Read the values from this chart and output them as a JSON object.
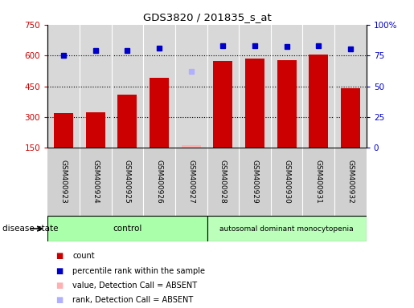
{
  "title": "GDS3820 / 201835_s_at",
  "samples": [
    "GSM400923",
    "GSM400924",
    "GSM400925",
    "GSM400926",
    "GSM400927",
    "GSM400928",
    "GSM400929",
    "GSM400930",
    "GSM400931",
    "GSM400932"
  ],
  "bar_values": [
    320,
    325,
    410,
    490,
    null,
    575,
    585,
    578,
    605,
    440
  ],
  "bar_absent_values": [
    null,
    null,
    null,
    null,
    163,
    null,
    null,
    null,
    null,
    null
  ],
  "percentile_values": [
    75,
    79,
    79,
    81,
    null,
    83,
    83,
    82,
    83,
    80
  ],
  "percentile_absent_values": [
    null,
    null,
    null,
    null,
    62,
    null,
    null,
    null,
    null,
    null
  ],
  "bar_color": "#cc0000",
  "bar_absent_color": "#ffb0b0",
  "percentile_color": "#0000cc",
  "percentile_absent_color": "#b0b0ff",
  "ylim_left": [
    150,
    750
  ],
  "ylim_right": [
    0,
    100
  ],
  "yticks_left": [
    150,
    300,
    450,
    600,
    750
  ],
  "yticks_right": [
    0,
    25,
    50,
    75,
    100
  ],
  "ytick_labels_right": [
    "0",
    "25",
    "50",
    "75",
    "100%"
  ],
  "hlines": [
    300,
    450,
    600
  ],
  "n_control": 5,
  "n_disease": 5,
  "control_label": "control",
  "disease_label": "autosomal dominant monocytopenia",
  "disease_state_label": "disease state",
  "legend_items": [
    {
      "label": "count",
      "color": "#cc0000"
    },
    {
      "label": "percentile rank within the sample",
      "color": "#0000cc"
    },
    {
      "label": "value, Detection Call = ABSENT",
      "color": "#ffb0b0"
    },
    {
      "label": "rank, Detection Call = ABSENT",
      "color": "#b0b0ff"
    }
  ],
  "background_color": "#ffffff",
  "plot_bg_color": "#d8d8d8",
  "xticklabel_bg_color": "#d0d0d0",
  "control_bg_color": "#aaffaa",
  "disease_bg_color": "#bbffbb"
}
